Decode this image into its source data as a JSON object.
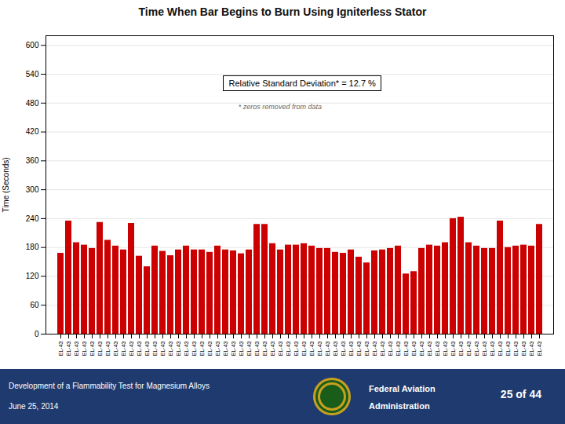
{
  "chart_data": {
    "type": "bar",
    "title": "Time When Bar Begins to Burn Using Igniterless Stator",
    "ylabel": "Time (Seconds)",
    "categories": [
      "EL-43",
      "EL-43",
      "EL-43",
      "EL-43",
      "EL-43",
      "EL-43",
      "EL-43",
      "EL-43",
      "EL-43",
      "EL-43",
      "EL-43",
      "EL-43",
      "EL-43",
      "EL-43",
      "EL-43",
      "EL-43",
      "EL-43",
      "EL-43",
      "EL-43",
      "EL-43",
      "EL-43",
      "EL-43",
      "EL-43",
      "EL-43",
      "EL-43",
      "EL-43",
      "EL-43",
      "EL-43",
      "EL-43",
      "EL-43",
      "EL-43",
      "EL-43",
      "EL-43",
      "EL-43",
      "EL-43",
      "EL-43",
      "EL-43",
      "EL-43",
      "EL-43",
      "EL-43",
      "EL-43",
      "EL-43",
      "EL-43",
      "EL-43",
      "EL-43",
      "EL-43",
      "EL-43",
      "EL-43",
      "EL-43",
      "EL-43",
      "EL-43",
      "EL-43",
      "EL-43",
      "EL-43",
      "EL-43",
      "EL-43",
      "EL-43",
      "EL-43",
      "EL-43",
      "EL-43",
      "EL-43",
      "EL-43"
    ],
    "values": [
      168,
      235,
      190,
      185,
      178,
      232,
      195,
      183,
      175,
      230,
      162,
      140,
      183,
      172,
      163,
      175,
      183,
      175,
      175,
      170,
      183,
      175,
      173,
      167,
      175,
      228,
      228,
      188,
      175,
      185,
      185,
      188,
      183,
      178,
      178,
      170,
      168,
      175,
      160,
      148,
      173,
      175,
      178,
      183,
      125,
      130,
      178,
      185,
      183,
      190,
      240,
      243,
      190,
      183,
      178,
      178,
      235,
      180,
      183,
      185,
      183,
      228
    ],
    "color": "#cc0000",
    "ylim": [
      0,
      620
    ],
    "yticks": [
      0,
      60,
      120,
      180,
      240,
      300,
      360,
      420,
      480,
      540,
      600
    ],
    "grid": true,
    "annotations": [
      "Relative Standard Deviation* = 12.7 %",
      "* zeros removed from data",
      "Development of a Flammability Test for Magnesium Alloys",
      "June 25, 2014",
      "Federal Aviation",
      "Administration",
      "25 of 44"
    ]
  }
}
